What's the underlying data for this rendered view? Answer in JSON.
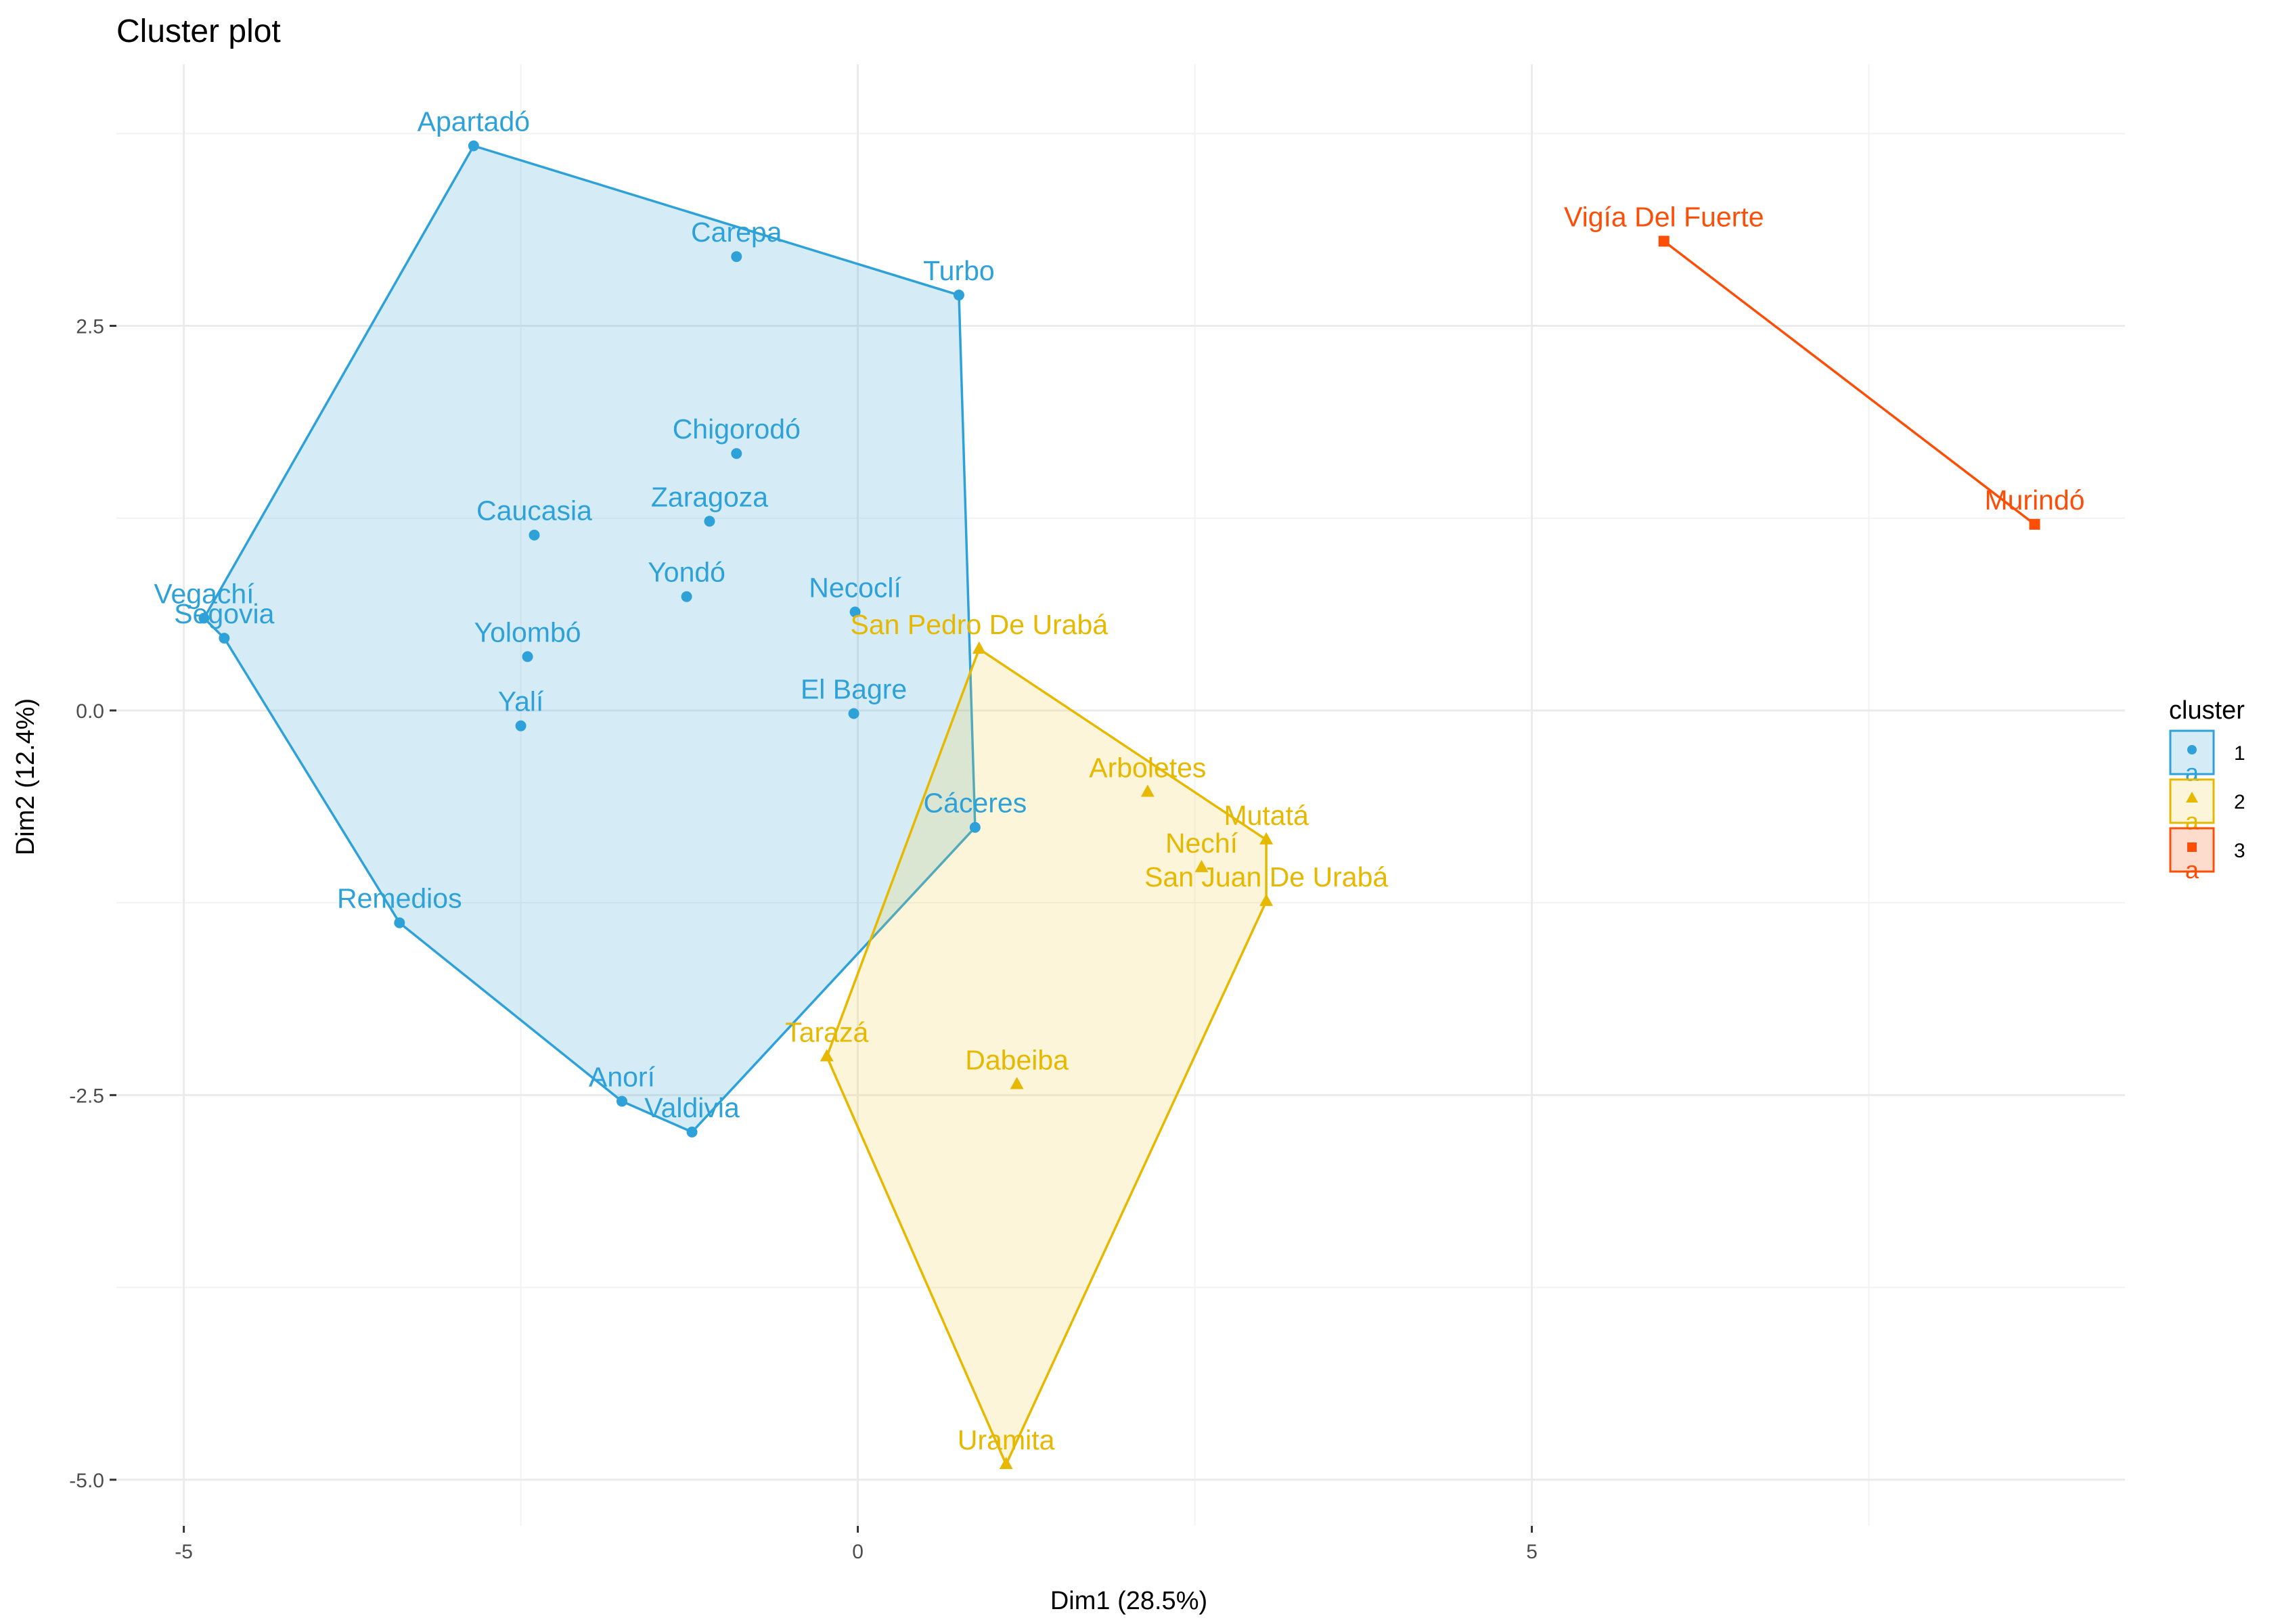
{
  "chart_data": {
    "type": "scatter",
    "title": "Cluster plot",
    "xlabel": "Dim1 (28.5%)",
    "ylabel": "Dim2 (12.4%)",
    "xlim": [
      -5.5,
      9.4
    ],
    "ylim": [
      -5.3,
      4.2
    ],
    "x_ticks": [
      -5,
      0,
      5
    ],
    "x_tick_labels": [
      "-5",
      "0",
      "5"
    ],
    "y_ticks": [
      -5,
      -2.5,
      0,
      2.5
    ],
    "y_tick_labels": [
      "-5.0",
      "-2.5",
      "0.0",
      "2.5"
    ],
    "grid": true,
    "legend": {
      "title": "cluster",
      "placement": "right",
      "entries": [
        {
          "label": "1",
          "key_letter": "a"
        },
        {
          "label": "2",
          "key_letter": "a"
        },
        {
          "label": "3",
          "key_letter": "a"
        }
      ]
    },
    "series": [
      {
        "name": "1",
        "color": "#2ea2d8",
        "fill": "#2ea2d8",
        "shape": "circle",
        "points": [
          {
            "label": "Apartadó",
            "x": -2.85,
            "y": 3.67
          },
          {
            "label": "Carepa",
            "x": -0.9,
            "y": 2.95
          },
          {
            "label": "Turbo",
            "x": 0.75,
            "y": 2.7
          },
          {
            "label": "Chigorodó",
            "x": -0.9,
            "y": 1.67
          },
          {
            "label": "Zaragoza",
            "x": -1.1,
            "y": 1.23
          },
          {
            "label": "Caucasia",
            "x": -2.4,
            "y": 1.14
          },
          {
            "label": "Yondó",
            "x": -1.27,
            "y": 0.74
          },
          {
            "label": "Necoclí",
            "x": -0.02,
            "y": 0.64
          },
          {
            "label": "Vegachí",
            "x": -4.85,
            "y": 0.6
          },
          {
            "label": "Segovia",
            "x": -4.7,
            "y": 0.47
          },
          {
            "label": "Yolombó",
            "x": -2.45,
            "y": 0.35
          },
          {
            "label": "El Bagre",
            "x": -0.03,
            "y": -0.02
          },
          {
            "label": "Yalí",
            "x": -2.5,
            "y": -0.1
          },
          {
            "label": "Cáceres",
            "x": 0.87,
            "y": -0.76
          },
          {
            "label": "Remedios",
            "x": -3.4,
            "y": -1.38
          },
          {
            "label": "Anorí",
            "x": -1.75,
            "y": -2.54
          },
          {
            "label": "Valdivia",
            "x": -1.23,
            "y": -2.74
          }
        ],
        "hull": [
          "Apartadó",
          "Turbo",
          "Cáceres",
          "Valdivia",
          "Anorí",
          "Remedios",
          "Segovia",
          "Vegachí"
        ]
      },
      {
        "name": "2",
        "color": "#e6b800",
        "fill": "#f0cf43",
        "shape": "triangle",
        "points": [
          {
            "label": "San Pedro De Urabá",
            "x": 0.9,
            "y": 0.4
          },
          {
            "label": "Arboletes",
            "x": 2.15,
            "y": -0.53
          },
          {
            "label": "Mutatá",
            "x": 3.03,
            "y": -0.84
          },
          {
            "label": "Nechí",
            "x": 2.55,
            "y": -1.02
          },
          {
            "label": "San Juan De Urabá",
            "x": 3.03,
            "y": -1.24
          },
          {
            "label": "Tarazá",
            "x": -0.23,
            "y": -2.25
          },
          {
            "label": "Dabeiba",
            "x": 1.18,
            "y": -2.43
          },
          {
            "label": "Uramita",
            "x": 1.1,
            "y": -4.9
          }
        ],
        "hull": [
          "San Pedro De Urabá",
          "Mutatá",
          "San Juan De Urabá",
          "Uramita",
          "Tarazá"
        ]
      },
      {
        "name": "3",
        "color": "#fc4e07",
        "fill": "#fc4e07",
        "shape": "square",
        "points": [
          {
            "label": "Vigía Del Fuerte",
            "x": 5.98,
            "y": 3.05
          },
          {
            "label": "Murindó",
            "x": 8.73,
            "y": 1.21
          }
        ],
        "hull": [
          "Vigía Del Fuerte",
          "Murindó"
        ]
      }
    ]
  }
}
